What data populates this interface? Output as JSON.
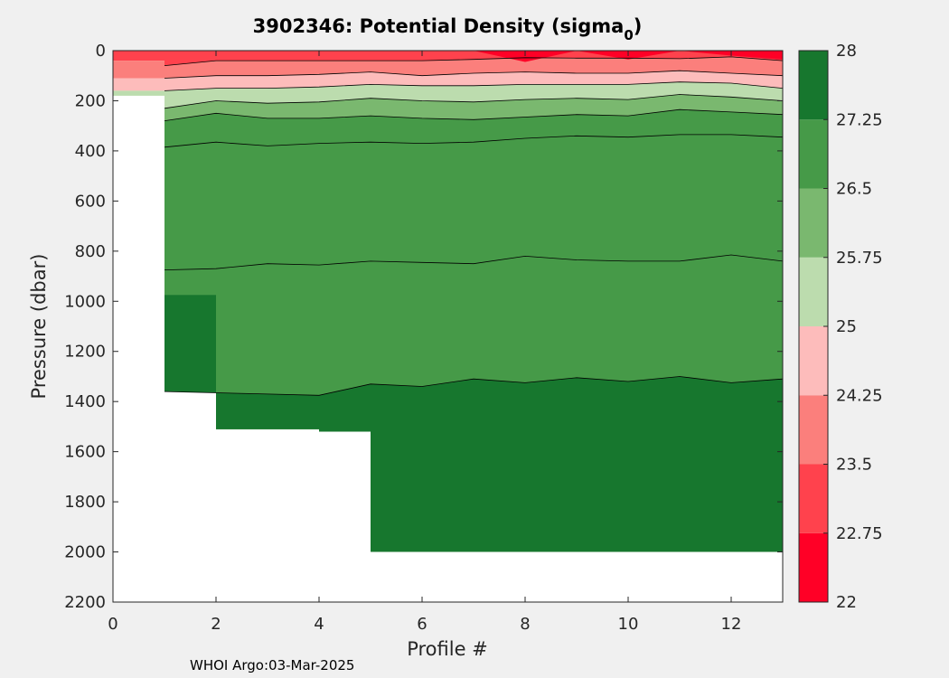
{
  "chart_data": {
    "type": "heatmap",
    "title": "3902346: Potential Density (sigma",
    "title_subscript": "0",
    "title_suffix": ")",
    "xlabel": "Profile #",
    "ylabel": "Pressure (dbar)",
    "xlim": [
      0,
      13
    ],
    "ylim": [
      0,
      2200
    ],
    "y_reversed": true,
    "x_ticks": [
      0,
      2,
      4,
      6,
      8,
      10,
      12
    ],
    "y_ticks": [
      0,
      200,
      400,
      600,
      800,
      1000,
      1200,
      1400,
      1600,
      1800,
      2000,
      2200
    ],
    "colorbar": {
      "ticks": [
        "22",
        "22.75",
        "23.5",
        "24.25",
        "25",
        "25.75",
        "26.5",
        "27.25",
        "28"
      ],
      "bands": [
        {
          "from": 22.0,
          "to": 22.75,
          "color": "#ff0026"
        },
        {
          "from": 22.75,
          "to": 23.5,
          "color": "#ff424d"
        },
        {
          "from": 23.5,
          "to": 24.25,
          "color": "#fb7f7c"
        },
        {
          "from": 24.25,
          "to": 25.0,
          "color": "#fdbcbb"
        },
        {
          "from": 25.0,
          "to": 25.75,
          "color": "#bcdcae"
        },
        {
          "from": 25.75,
          "to": 26.5,
          "color": "#7ab86f"
        },
        {
          "from": 26.5,
          "to": 27.25,
          "color": "#469a48"
        },
        {
          "from": 27.25,
          "to": 28.0,
          "color": "#17772e"
        }
      ]
    },
    "profiles_x": [
      1,
      2,
      3,
      4,
      5,
      6,
      7,
      8,
      9,
      10,
      11,
      12,
      13
    ],
    "max_pressure": [
      975,
      1510,
      1510,
      1520,
      2000,
      2000,
      2000,
      2000,
      2000,
      2000,
      2000,
      2000,
      2000
    ],
    "isopycnals": [
      {
        "level": 22.75,
        "depth": [
          60,
          40,
          40,
          40,
          40,
          40,
          35,
          28,
          30,
          30,
          32,
          25,
          40
        ]
      },
      {
        "level": 23.5,
        "depth": [
          110,
          100,
          100,
          95,
          85,
          100,
          90,
          85,
          90,
          90,
          80,
          90,
          100
        ]
      },
      {
        "level": 24.25,
        "depth": [
          160,
          150,
          150,
          145,
          135,
          140,
          140,
          135,
          135,
          135,
          125,
          130,
          150
        ]
      },
      {
        "level": 25.0,
        "depth": [
          230,
          200,
          210,
          205,
          190,
          200,
          205,
          195,
          190,
          195,
          175,
          185,
          200
        ]
      },
      {
        "level": 25.75,
        "depth": [
          280,
          250,
          270,
          270,
          260,
          270,
          275,
          265,
          255,
          260,
          235,
          245,
          255
        ]
      },
      {
        "level": 26.5,
        "depth": [
          385,
          365,
          380,
          370,
          365,
          370,
          365,
          350,
          340,
          345,
          335,
          335,
          345
        ]
      },
      {
        "level": 27.25,
        "depth": [
          875,
          870,
          850,
          855,
          840,
          845,
          850,
          820,
          835,
          840,
          840,
          815,
          840
        ]
      },
      {
        "level": 28.0,
        "depth": [
          1360,
          1365,
          1370,
          1375,
          1330,
          1340,
          1310,
          1325,
          1305,
          1320,
          1300,
          1325,
          1310
        ]
      }
    ],
    "surface_bands": [
      {
        "color": "#ff0026",
        "top": [
          0,
          0,
          0,
          0,
          0,
          0,
          0,
          0,
          0,
          0,
          0,
          0,
          0
        ],
        "bottom": [
          0,
          0,
          0,
          0,
          0,
          0,
          0,
          45,
          0,
          35,
          0,
          20,
          35
        ]
      },
      {
        "color": "#ff424d",
        "top": [
          0,
          0,
          0,
          0,
          0,
          0,
          0,
          0,
          0,
          0,
          0,
          0,
          0
        ],
        "bottom": [
          0,
          0,
          0,
          0,
          0,
          0,
          0,
          0,
          0,
          0,
          0,
          0,
          0
        ]
      }
    ],
    "footer": "WHOI Argo:03-Mar-2025"
  }
}
